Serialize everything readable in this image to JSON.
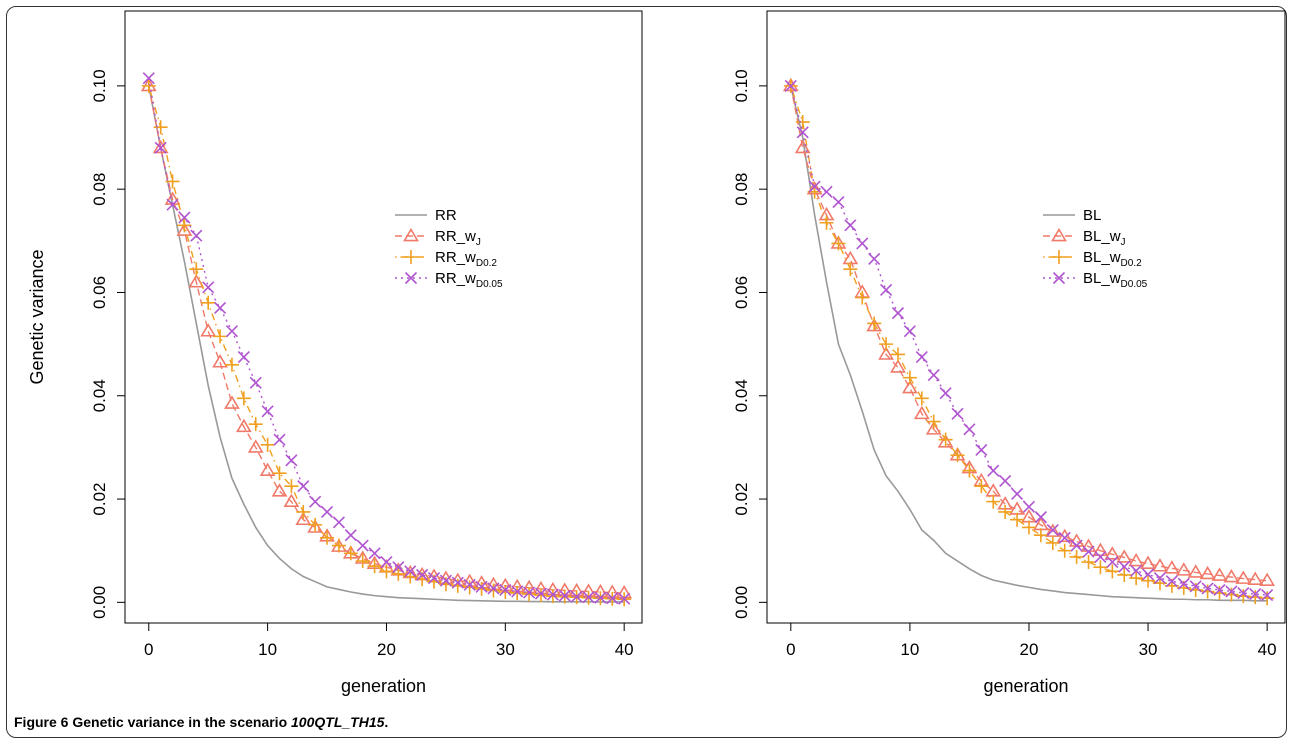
{
  "caption": {
    "label": "Figure 6",
    "title": "Genetic variance in the scenario",
    "scenario": "100QTL_TH15",
    "end": "."
  },
  "chart_data": [
    {
      "type": "line",
      "xlabel": "generation",
      "ylabel": "Genetic variance",
      "xlim": [
        -2,
        41.5
      ],
      "ylim": [
        -0.004,
        0.1145
      ],
      "xticks": [
        "0",
        "10",
        "20",
        "30",
        "40"
      ],
      "yticks": [
        "0.00",
        "0.02",
        "0.04",
        "0.06",
        "0.08",
        "0.10"
      ],
      "x": [
        0,
        1,
        2,
        3,
        4,
        5,
        6,
        7,
        8,
        9,
        10,
        11,
        12,
        13,
        14,
        15,
        16,
        17,
        18,
        19,
        20,
        21,
        22,
        23,
        24,
        25,
        26,
        27,
        28,
        29,
        30,
        31,
        32,
        33,
        34,
        35,
        36,
        37,
        38,
        39,
        40
      ],
      "legend": {
        "position": "right",
        "entries": [
          {
            "base": "RR",
            "sub": ""
          },
          {
            "base": "RR_w",
            "sub": "J"
          },
          {
            "base": "RR_w",
            "sub": "D0.2"
          },
          {
            "base": "RR_w",
            "sub": "D0.05"
          }
        ]
      },
      "series": [
        {
          "name": "RR",
          "color": "#999999",
          "marker": "none",
          "dash": "solid",
          "values": [
            0.1,
            0.088,
            0.077,
            0.066,
            0.054,
            0.042,
            0.032,
            0.024,
            0.019,
            0.0145,
            0.011,
            0.0085,
            0.0065,
            0.005,
            0.004,
            0.003,
            0.0025,
            0.002,
            0.0016,
            0.0013,
            0.0011,
            0.0009,
            0.0008,
            0.0007,
            0.0006,
            0.0005,
            0.0004,
            0.00035,
            0.0003,
            0.00025,
            0.0002,
            0.0002,
            0.00015,
            0.00015,
            0.0001,
            0.0001,
            0.0001,
            0.0001,
            8e-05,
            8e-05,
            8e-05
          ]
        },
        {
          "name": "RR_wJ",
          "color": "#f07a6a",
          "marker": "triangle",
          "dash": "dashed",
          "values": [
            0.1,
            0.088,
            0.078,
            0.072,
            0.062,
            0.0525,
            0.0465,
            0.0385,
            0.034,
            0.03,
            0.0255,
            0.0215,
            0.0195,
            0.016,
            0.0145,
            0.0128,
            0.0108,
            0.0095,
            0.0085,
            0.0075,
            0.0068,
            0.0062,
            0.0057,
            0.0053,
            0.005,
            0.0046,
            0.0042,
            0.004,
            0.0037,
            0.0034,
            0.0032,
            0.003,
            0.0028,
            0.0026,
            0.0024,
            0.0023,
            0.0022,
            0.0021,
            0.002,
            0.0019,
            0.0018
          ]
        },
        {
          "name": "RR_wD0.2",
          "color": "#f0a020",
          "marker": "plus",
          "dash": "dotdash",
          "values": [
            0.1,
            0.092,
            0.0815,
            0.073,
            0.0645,
            0.058,
            0.0515,
            0.046,
            0.0395,
            0.0345,
            0.0305,
            0.025,
            0.0225,
            0.0175,
            0.015,
            0.0125,
            0.011,
            0.0095,
            0.008,
            0.007,
            0.006,
            0.0055,
            0.005,
            0.0045,
            0.004,
            0.0035,
            0.0032,
            0.0029,
            0.0026,
            0.0023,
            0.002,
            0.0018,
            0.0016,
            0.0014,
            0.0012,
            0.0011,
            0.001,
            0.0009,
            0.0008,
            0.0007,
            0.0006
          ]
        },
        {
          "name": "RR_wD0.05",
          "color": "#b055d0",
          "marker": "cross",
          "dash": "dotted",
          "values": [
            0.1015,
            0.088,
            0.077,
            0.0745,
            0.071,
            0.061,
            0.057,
            0.0525,
            0.0475,
            0.0425,
            0.037,
            0.0315,
            0.0275,
            0.0225,
            0.0195,
            0.0175,
            0.0155,
            0.013,
            0.011,
            0.0095,
            0.0078,
            0.0068,
            0.006,
            0.0053,
            0.0047,
            0.0042,
            0.0038,
            0.0034,
            0.003,
            0.0027,
            0.0024,
            0.0021,
            0.0019,
            0.0017,
            0.0015,
            0.0013,
            0.0011,
            0.001,
            0.0009,
            0.0008,
            0.0007
          ]
        }
      ]
    },
    {
      "type": "line",
      "xlabel": "generation",
      "ylabel": "",
      "xlim": [
        -2,
        41.5
      ],
      "ylim": [
        -0.004,
        0.1145
      ],
      "xticks": [
        "0",
        "10",
        "20",
        "30",
        "40"
      ],
      "yticks": [
        "0.00",
        "0.02",
        "0.04",
        "0.06",
        "0.08",
        "0.10"
      ],
      "x": [
        0,
        1,
        2,
        3,
        4,
        5,
        6,
        7,
        8,
        9,
        10,
        11,
        12,
        13,
        14,
        15,
        16,
        17,
        18,
        19,
        20,
        21,
        22,
        23,
        24,
        25,
        26,
        27,
        28,
        29,
        30,
        31,
        32,
        33,
        34,
        35,
        36,
        37,
        38,
        39,
        40
      ],
      "legend": {
        "position": "right",
        "entries": [
          {
            "base": "BL",
            "sub": ""
          },
          {
            "base": "BL_w",
            "sub": "J"
          },
          {
            "base": "BL_w",
            "sub": "D0.2"
          },
          {
            "base": "BL_w",
            "sub": "D0.05"
          }
        ]
      },
      "series": [
        {
          "name": "BL",
          "color": "#999999",
          "marker": "none",
          "dash": "solid",
          "values": [
            0.1,
            0.09,
            0.075,
            0.062,
            0.05,
            0.044,
            0.037,
            0.0295,
            0.0245,
            0.0215,
            0.018,
            0.014,
            0.012,
            0.0095,
            0.008,
            0.0065,
            0.0052,
            0.0043,
            0.0038,
            0.0033,
            0.0029,
            0.0025,
            0.0022,
            0.0019,
            0.0017,
            0.0015,
            0.0013,
            0.0011,
            0.001,
            0.0009,
            0.0008,
            0.0007,
            0.0006,
            0.0006,
            0.0005,
            0.0005,
            0.0004,
            0.0004,
            0.0004,
            0.0003,
            0.0003
          ]
        },
        {
          "name": "BL_wJ",
          "color": "#f07a6a",
          "marker": "triangle",
          "dash": "dashed",
          "values": [
            0.1,
            0.088,
            0.08,
            0.075,
            0.0695,
            0.0665,
            0.06,
            0.0535,
            0.048,
            0.0455,
            0.0415,
            0.0365,
            0.0335,
            0.031,
            0.0285,
            0.026,
            0.0235,
            0.0215,
            0.019,
            0.018,
            0.0165,
            0.015,
            0.0137,
            0.0127,
            0.0118,
            0.0108,
            0.01,
            0.0093,
            0.0087,
            0.008,
            0.0075,
            0.007,
            0.0066,
            0.0062,
            0.0058,
            0.0055,
            0.0052,
            0.0049,
            0.0046,
            0.0044,
            0.0042
          ]
        },
        {
          "name": "BL_wD0.2",
          "color": "#f0a020",
          "marker": "plus",
          "dash": "dotdash",
          "values": [
            0.1,
            0.093,
            0.0795,
            0.0735,
            0.0695,
            0.0645,
            0.059,
            0.054,
            0.05,
            0.048,
            0.0435,
            0.0395,
            0.035,
            0.0315,
            0.0285,
            0.0255,
            0.0225,
            0.0195,
            0.0175,
            0.016,
            0.0145,
            0.013,
            0.0115,
            0.01,
            0.0088,
            0.0078,
            0.0068,
            0.006,
            0.0053,
            0.0047,
            0.0042,
            0.0037,
            0.0032,
            0.0028,
            0.0024,
            0.0021,
            0.0018,
            0.0015,
            0.0012,
            0.001,
            0.0008
          ]
        },
        {
          "name": "BL_wD0.05",
          "color": "#b055d0",
          "marker": "cross",
          "dash": "dotted",
          "values": [
            0.1,
            0.091,
            0.0805,
            0.0795,
            0.0775,
            0.073,
            0.0695,
            0.0665,
            0.0605,
            0.056,
            0.0525,
            0.0475,
            0.044,
            0.0405,
            0.0365,
            0.0335,
            0.0295,
            0.0255,
            0.0235,
            0.021,
            0.0185,
            0.0165,
            0.014,
            0.0125,
            0.011,
            0.0098,
            0.0088,
            0.0078,
            0.0069,
            0.0061,
            0.0054,
            0.0047,
            0.0041,
            0.0036,
            0.0031,
            0.0027,
            0.0024,
            0.0021,
            0.0018,
            0.0016,
            0.0014
          ]
        }
      ]
    }
  ]
}
